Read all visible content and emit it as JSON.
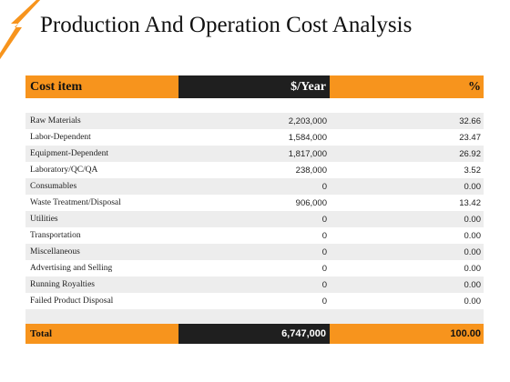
{
  "title": "Production And Operation Cost Analysis",
  "accent_color": "#f7941d",
  "dark_color": "#1f1f1f",
  "header": {
    "col1": "Cost item",
    "col2": "$/Year",
    "col3": "%"
  },
  "rows": [
    {
      "item": "Raw Materials",
      "year": "2,203,000",
      "pct": "32.66"
    },
    {
      "item": "Labor-Dependent",
      "year": "1,584,000",
      "pct": "23.47"
    },
    {
      "item": "Equipment-Dependent",
      "year": "1,817,000",
      "pct": "26.92"
    },
    {
      "item": "Laboratory/QC/QA",
      "year": "238,000",
      "pct": "3.52"
    },
    {
      "item": "Consumables",
      "year": "0",
      "pct": "0.00"
    },
    {
      "item": "Waste Treatment/Disposal",
      "year": "906,000",
      "pct": "13.42"
    },
    {
      "item": "Utilities",
      "year": "0",
      "pct": "0.00"
    },
    {
      "item": "Transportation",
      "year": "0",
      "pct": "0.00"
    },
    {
      "item": "Miscellaneous",
      "year": "0",
      "pct": "0.00"
    },
    {
      "item": "Advertising and Selling",
      "year": "0",
      "pct": "0.00"
    },
    {
      "item": "Running Royalties",
      "year": "0",
      "pct": "0.00"
    },
    {
      "item": "Failed Product Disposal",
      "year": "0",
      "pct": "0.00"
    }
  ],
  "total": {
    "label": "Total",
    "year": "6,747,000",
    "pct": "100.00"
  }
}
